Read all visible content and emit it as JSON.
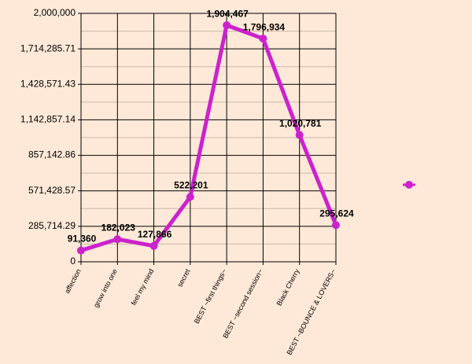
{
  "chart_data": {
    "type": "line",
    "categories": [
      "affection",
      "grow into one",
      "feel my mind",
      "secret",
      "BEST ~first things~",
      "BEST ~second session~",
      "Black Cherry",
      "BEST ~BOUNCE & LOVERS~"
    ],
    "series": [
      {
        "color": "#cc22cc",
        "values": [
          91360,
          182023,
          127866,
          522201,
          1904467,
          1796934,
          1020781,
          295624
        ],
        "value_labels": [
          "91,360",
          "182,023",
          "127,866",
          "522,201",
          "1,904,467",
          "1,796,934",
          "1,020,781",
          "295,624"
        ]
      }
    ],
    "ylim": [
      0,
      2000000
    ],
    "yticks": [
      0,
      {
        "value": 285714.29,
        "label": "285,714.29"
      },
      {
        "value": 571428.57,
        "label": "571,428.57"
      },
      {
        "value": 857142.86,
        "label": "857,142.86"
      },
      {
        "value": 1142857.14,
        "label": "1,142,857.14"
      },
      {
        "value": 1428571.43,
        "label": "1,428,571.43"
      },
      {
        "value": 1714285.71,
        "label": "1,714,285.71"
      },
      {
        "value": 2000000,
        "label": "2,000,000"
      }
    ],
    "grid": true
  }
}
